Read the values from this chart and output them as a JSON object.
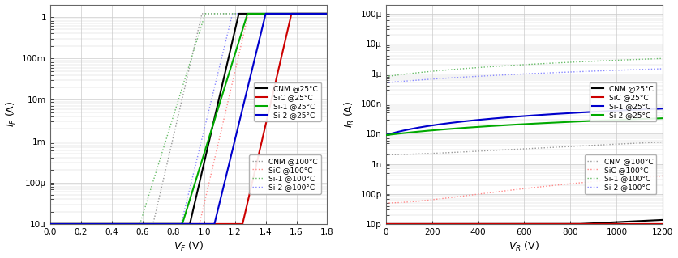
{
  "left": {
    "xlabel": "V_F (V)",
    "ylabel": "I_F (A)",
    "xlim": [
      0.0,
      1.8
    ],
    "ylim": [
      1e-05,
      2.0
    ],
    "xtick_vals": [
      0.0,
      0.2,
      0.4,
      0.6,
      0.8,
      1.0,
      1.2,
      1.4,
      1.6,
      1.8
    ],
    "xtick_labels": [
      "0,0",
      "0,2",
      "0,4",
      "0,6",
      "0,8",
      "1,0",
      "1,2",
      "1,4",
      "1,6",
      "1,8"
    ],
    "curves_25": [
      {
        "label": "CNM @25°C",
        "color": "#000000",
        "ls": "solid",
        "Is": 3e-20,
        "n": 1.05
      },
      {
        "label": "SiC @25°C",
        "color": "#cc0000",
        "ls": "solid",
        "Is": 1e-25,
        "n": 1.05
      },
      {
        "label": "Si-1 @25°C",
        "color": "#00aa00",
        "ls": "solid",
        "Is": 5e-16,
        "n": 1.4
      },
      {
        "label": "Si-2 @25°C",
        "color": "#0000cc",
        "ls": "solid",
        "Is": 5e-22,
        "n": 1.1
      }
    ],
    "curves_100": [
      {
        "label": "CNM @100°C",
        "color": "#999999",
        "ls": "dotted",
        "Is": 2e-16,
        "n": 1.05
      },
      {
        "label": "SiC @100°C",
        "color": "#ff8888",
        "ls": "dotted",
        "Is": 3e-21,
        "n": 1.05
      },
      {
        "label": "Si-1 @100°C",
        "color": "#66bb66",
        "ls": "dotted",
        "Is": 1e-12,
        "n": 1.4
      },
      {
        "label": "Si-2 @100°C",
        "color": "#8888ff",
        "ls": "dotted",
        "Is": 1e-18,
        "n": 1.1
      }
    ]
  },
  "right": {
    "xlabel": "V_R (V)",
    "ylabel": "I_R (A)",
    "xlim": [
      0,
      1200
    ],
    "ylim": [
      1e-11,
      0.0002
    ],
    "xtick_vals": [
      0,
      200,
      400,
      600,
      800,
      1000,
      1200
    ],
    "curves_25": [
      {
        "label": "CNM @25°C",
        "color": "#000000",
        "ls": "solid",
        "I0": 6e-12,
        "k": 2.2e-17,
        "exp": 1.8
      },
      {
        "label": "SiC @25°C",
        "color": "#cc0000",
        "ls": "solid",
        "I0": 5e-13,
        "k": 8e-22,
        "exp": 2.2
      },
      {
        "label": "Si-1 @25°C",
        "color": "#0000cc",
        "ls": "solid",
        "I0": 9e-09,
        "k": 5e-11,
        "exp": 1.0
      },
      {
        "label": "Si-2 @25°C",
        "color": "#00aa00",
        "ls": "solid",
        "I0": 9e-09,
        "k": 2e-11,
        "exp": 1.0
      }
    ],
    "curves_100": [
      {
        "label": "CNM @100°C",
        "color": "#999999",
        "ls": "dotted",
        "I0": 2e-09,
        "k": 8e-14,
        "exp": 1.5
      },
      {
        "label": "SiC @100°C",
        "color": "#ff8888",
        "ls": "dotted",
        "I0": 5e-11,
        "k": 1e-15,
        "exp": 1.8
      },
      {
        "label": "Si-1 @100°C",
        "color": "#66bb66",
        "ls": "dotted",
        "I0": 8e-07,
        "k": 2e-09,
        "exp": 1.0
      },
      {
        "label": "Si-2 @100°C",
        "color": "#8888ff",
        "ls": "dotted",
        "I0": 5e-07,
        "k": 8e-10,
        "exp": 1.0
      }
    ]
  },
  "bg_color": "#ffffff",
  "grid_color": "#cccccc",
  "legend_fontsize": 6.5,
  "axis_label_fontsize": 9,
  "tick_fontsize": 7.5
}
